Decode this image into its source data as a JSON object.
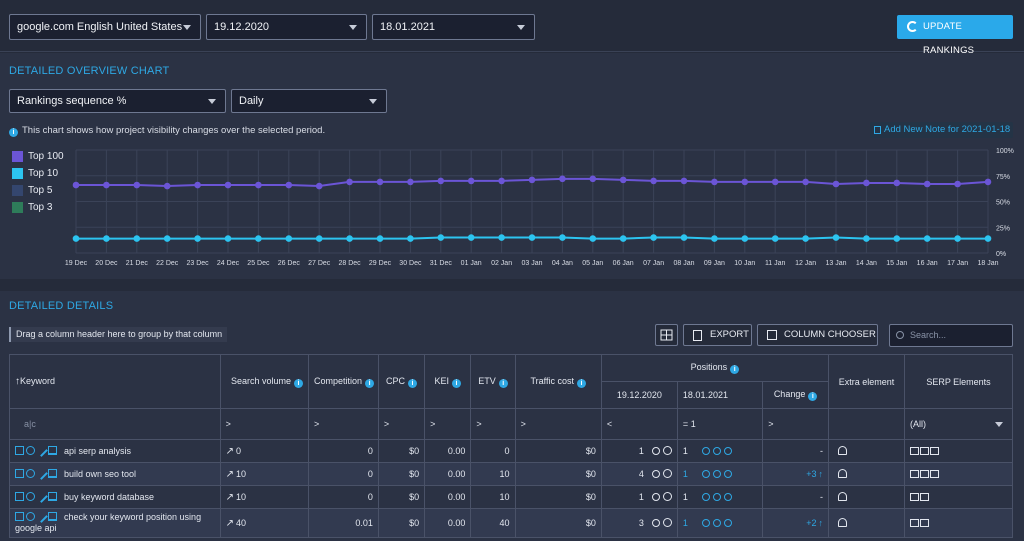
{
  "filters": {
    "search_engine": "google.com English United States",
    "date_from": "19.12.2020",
    "date_to": "18.01.2021",
    "update_label": "UPDATE RANKINGS"
  },
  "overview": {
    "title": "DETAILED OVERVIEW CHART",
    "metric_select": "Rankings sequence %",
    "period_select": "Daily",
    "info_text": "This chart shows how project visibility changes over the selected period.",
    "note_label": "Add New Note for 2021-01-18",
    "legend": [
      "Top 100",
      "Top 10",
      "Top 5",
      "Top 3"
    ],
    "colors": {
      "top100": "#6b55d6",
      "top10": "#2cc4f0",
      "top5": "#34466e",
      "top3": "#2e7c5a"
    }
  },
  "chart_data": {
    "type": "line",
    "x": [
      "19 Dec",
      "20 Dec",
      "21 Dec",
      "22 Dec",
      "23 Dec",
      "24 Dec",
      "25 Dec",
      "26 Dec",
      "27 Dec",
      "28 Dec",
      "29 Dec",
      "30 Dec",
      "31 Dec",
      "01 Jan",
      "02 Jan",
      "03 Jan",
      "04 Jan",
      "05 Jan",
      "06 Jan",
      "07 Jan",
      "08 Jan",
      "09 Jan",
      "10 Jan",
      "11 Jan",
      "12 Jan",
      "13 Jan",
      "14 Jan",
      "15 Jan",
      "16 Jan",
      "17 Jan",
      "18 Jan"
    ],
    "yticks": [
      "100%",
      "75%",
      "50%",
      "25%",
      "0%"
    ],
    "ylim": [
      0,
      100
    ],
    "series": [
      {
        "name": "Top 100",
        "values": [
          66,
          66,
          66,
          65,
          66,
          66,
          66,
          66,
          65,
          69,
          69,
          69,
          70,
          70,
          70,
          71,
          72,
          72,
          71,
          70,
          70,
          69,
          69,
          69,
          69,
          67,
          68,
          68,
          67,
          67,
          69
        ]
      },
      {
        "name": "Top 10",
        "values": [
          14,
          14,
          14,
          14,
          14,
          14,
          14,
          14,
          14,
          14,
          14,
          14,
          15,
          15,
          15,
          15,
          15,
          14,
          14,
          15,
          15,
          14,
          14,
          14,
          14,
          15,
          14,
          14,
          14,
          14,
          14
        ]
      }
    ],
    "grid": true,
    "legend": "top-left"
  },
  "details": {
    "title": "DETAILED DETAILS",
    "drag_hint": "Drag a column header here to group by that column",
    "export_label": "EXPORT",
    "chooser_label": "COLUMN CHOOSER",
    "search_placeholder": "Search...",
    "columns": {
      "keyword": "Keyword",
      "volume": "Search volume",
      "competition": "Competition",
      "cpc": "CPC",
      "kei": "KEI",
      "etv": "ETV",
      "traffic": "Traffic cost",
      "positions": "Positions",
      "date1": "19.12.2020",
      "date2": "18.01.2021",
      "change": "Change",
      "extra": "Extra element",
      "serp": "SERP Elements"
    },
    "filter_row": {
      "keyword": "a|c",
      "op": ">",
      "lt": "<",
      "eq": "=",
      "eq_value": "1",
      "serp_all": "(All)"
    },
    "rows": [
      {
        "keyword": "api serp analysis",
        "volume": "0",
        "competition": "0",
        "cpc": "$0",
        "kei": "0.00",
        "etv": "0",
        "traffic": "$0",
        "p1": "1",
        "p2": "1",
        "change": "-"
      },
      {
        "keyword": "build own seo tool",
        "volume": "10",
        "competition": "0",
        "cpc": "$0",
        "kei": "0.00",
        "etv": "10",
        "traffic": "$0",
        "p1": "4",
        "p2": "1",
        "change": "+3"
      },
      {
        "keyword": "buy keyword database",
        "volume": "10",
        "competition": "0",
        "cpc": "$0",
        "kei": "0.00",
        "etv": "10",
        "traffic": "$0",
        "p1": "1",
        "p2": "1",
        "change": "-"
      },
      {
        "keyword": "check your keyword position using google api",
        "volume": "40",
        "competition": "0.01",
        "cpc": "$0",
        "kei": "0.00",
        "etv": "40",
        "traffic": "$0",
        "p1": "3",
        "p2": "1",
        "change": "+2"
      }
    ]
  }
}
